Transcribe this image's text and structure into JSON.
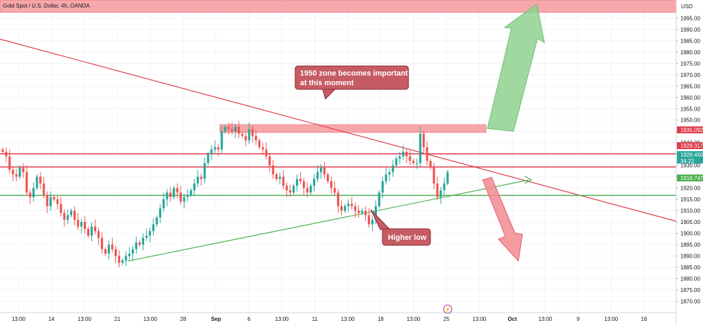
{
  "header": {
    "title": "Gold Spot / U.S. Dollar, 4h, OANDA",
    "currency": "USD"
  },
  "colors": {
    "up": "#26a69a",
    "down": "#ef5350",
    "resistance": "#e03a4a",
    "support": "#4caf50",
    "zone": "#f48a8f",
    "note_bg": "#c65b63",
    "note_border": "#8b2a33",
    "current": "#26a69a",
    "arrow_up": "#8fd18f",
    "arrow_down": "#f28b91"
  },
  "chart_data": {
    "type": "candlestick",
    "symbol": "XAUUSD",
    "timeframe": "4h",
    "ylim": [
      1865,
      2003
    ],
    "y_ticks": [
      1870,
      1875,
      1880,
      1885,
      1890,
      1895,
      1900,
      1905,
      1910,
      1915,
      1920,
      1925,
      1930,
      1935,
      1940,
      1945,
      1950,
      1955,
      1960,
      1965,
      1970,
      1975,
      1980,
      1985,
      1990,
      1995,
      2000
    ],
    "x_ticks": [
      "13:00",
      "14",
      "13:00",
      "21",
      "13:00",
      "28",
      "Sep",
      "6",
      "13:00",
      "11",
      "13:00",
      "18",
      "13:00",
      "25",
      "13:00",
      "Oct",
      "13:00",
      "9",
      "13:00",
      "16"
    ],
    "price_labels": [
      {
        "value": "1935.092",
        "color": "#e03a4a"
      },
      {
        "value": "1929.317",
        "color": "#e03a4a"
      },
      {
        "value": "1926.450",
        "color": "#26a69a",
        "sub": "34:22"
      },
      {
        "value": "1916.747",
        "color": "#4caf50"
      }
    ],
    "horizontal_levels": [
      {
        "name": "resistance-1935",
        "value": 1935.092,
        "color": "#e03a4a"
      },
      {
        "name": "resistance-1929",
        "value": 1929.317,
        "color": "#e03a4a"
      },
      {
        "name": "support-1916",
        "value": 1916.747,
        "color": "#4caf50"
      }
    ],
    "zones": [
      {
        "name": "top-zone",
        "from": 1997.5,
        "to": 2003
      },
      {
        "name": "1950-zone",
        "from": 1944.5,
        "to": 1948
      }
    ],
    "candles_close": [
      1936,
      1934,
      1928,
      1926,
      1925,
      1929,
      1927,
      1918,
      1916,
      1920,
      1925,
      1922,
      1917,
      1912,
      1916,
      1915,
      1913,
      1909,
      1906,
      1908,
      1910,
      1906,
      1903,
      1905,
      1902,
      1899,
      1903,
      1901,
      1898,
      1893,
      1891,
      1895,
      1893,
      1890,
      1887,
      1888,
      1890,
      1891,
      1893,
      1896,
      1895,
      1898,
      1899,
      1901,
      1904,
      1907,
      1911,
      1915,
      1918,
      1916,
      1920,
      1918,
      1914,
      1916,
      1917,
      1919,
      1922,
      1925,
      1924,
      1931,
      1935,
      1937,
      1938,
      1937,
      1945,
      1947,
      1946,
      1945,
      1947,
      1944,
      1943,
      1941,
      1946,
      1943,
      1941,
      1938,
      1937,
      1934,
      1930,
      1926,
      1924,
      1925,
      1921,
      1919,
      1918,
      1921,
      1924,
      1923,
      1920,
      1918,
      1921,
      1924,
      1927,
      1929,
      1926,
      1923,
      1920,
      1918,
      1912,
      1910,
      1912,
      1913,
      1912,
      1910,
      1909,
      1910,
      1908,
      1904,
      1906,
      1912,
      1918,
      1923,
      1926,
      1927,
      1930,
      1933,
      1934,
      1936,
      1934,
      1932,
      1931,
      1931,
      1944,
      1938,
      1932,
      1929,
      1922,
      1916,
      1919,
      1922,
      1927
    ],
    "annotations": [
      "1950 zone becomes important at this moment",
      "Higher low"
    ]
  },
  "notes": {
    "zone_note_line1": "1950 zone becomes important",
    "zone_note_line2": "at this moment",
    "low_note": "Higher low"
  },
  "footer": {
    "lightning": "⚡"
  }
}
